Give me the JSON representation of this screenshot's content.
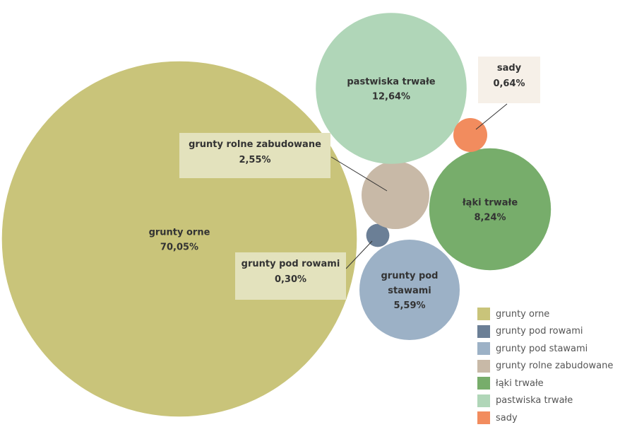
{
  "chart_data": {
    "type": "bubble",
    "unit": "%",
    "series": [
      {
        "name": "grunty orne",
        "value": 70.05,
        "label": "70,05%",
        "color": "#c9c47a"
      },
      {
        "name": "grunty pod rowami",
        "value": 0.3,
        "label": "0,30%",
        "color": "#6b7f96"
      },
      {
        "name": "grunty pod stawami",
        "value": 5.59,
        "label": "5,59%",
        "color": "#9cb1c6"
      },
      {
        "name": "grunty rolne zabudowane",
        "value": 2.55,
        "label": "2,55%",
        "color": "#c8b9a7"
      },
      {
        "name": "łąki trwałe",
        "value": 8.24,
        "label": "8,24%",
        "color": "#77ad6b"
      },
      {
        "name": "pastwiska trwałe",
        "value": 12.64,
        "label": "12,64%",
        "color": "#b0d6b8"
      },
      {
        "name": "sady",
        "value": 0.64,
        "label": "0,64%",
        "color": "#f28c5e"
      }
    ],
    "legend": {
      "position": "bottom-right"
    }
  }
}
